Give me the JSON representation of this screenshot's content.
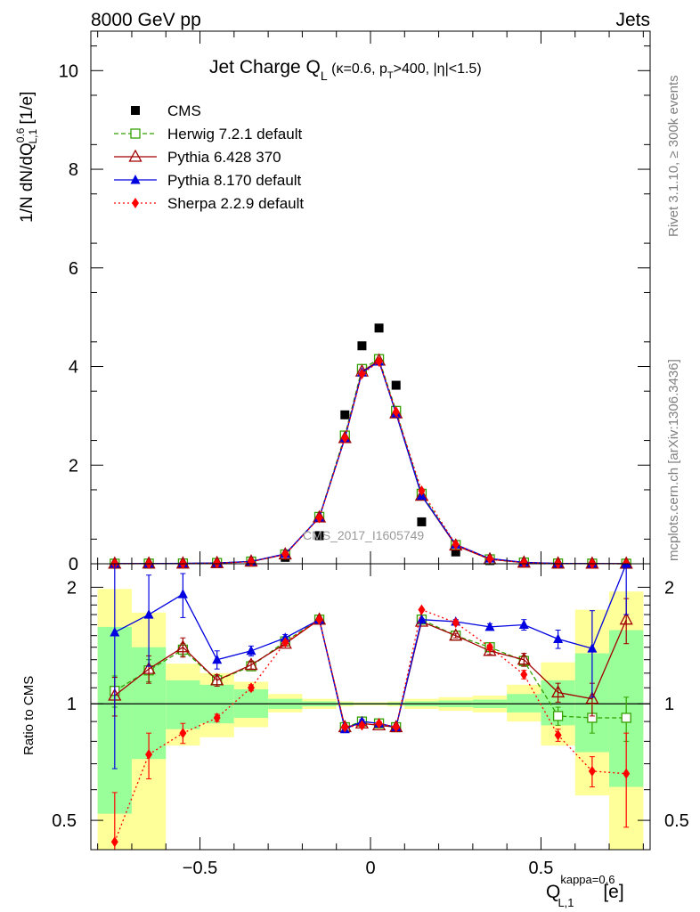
{
  "header": {
    "left": "8000 GeV pp",
    "right": "Jets"
  },
  "side_text": {
    "top": "Rivet 3.1.10, ≥ 300k events",
    "bottom": "mcplots.cern.ch [arXiv:1306.3436]"
  },
  "watermark": "CMS_2017_I1605749",
  "chart_data": [
    {
      "type": "scatter",
      "title": "Jet Charge Q_L (κ=0.6, p_T>400, |η|<1.5)",
      "title_main": "Jet Charge Q",
      "title_sub": "L",
      "title_rest1": " (κ=0.6, p",
      "title_sub2": "T",
      "title_rest2": ">400, |η|<1.5)",
      "ylabel": "1/N dN/dQ_L,1^0.6 [1/e]",
      "ylabel_main": "1/N dN/dQ",
      "ylabel_sup": "0.6",
      "ylabel_sub": "L,1",
      "ylabel_unit": " [1/e]",
      "xlim": [
        -0.82,
        0.82
      ],
      "ylim": [
        0,
        10.8
      ],
      "yticks": [
        0,
        2,
        4,
        6,
        8,
        10
      ],
      "ytick_labels": [
        "0",
        "2",
        "4",
        "6",
        "8",
        "10"
      ],
      "x": [
        -0.75,
        -0.65,
        -0.55,
        -0.45,
        -0.35,
        -0.25,
        -0.15,
        -0.075,
        -0.025,
        0.025,
        0.075,
        0.15,
        0.25,
        0.35,
        0.45,
        0.55,
        0.65,
        0.75
      ],
      "legend_position": "top-left",
      "series": [
        {
          "name": "CMS",
          "color": "#000000",
          "marker": "square",
          "values": [
            0.002,
            0.003,
            0.004,
            0.012,
            0.035,
            0.13,
            0.57,
            3.02,
            4.42,
            4.78,
            3.62,
            0.85,
            0.24,
            0.065,
            0.018,
            0.005,
            0.003,
            0.001
          ]
        },
        {
          "name": "Herwig 7.2.1 default",
          "color": "#33a000",
          "marker": "open-square",
          "dash": "5,3",
          "values": [
            0.002,
            0.004,
            0.006,
            0.016,
            0.045,
            0.19,
            0.95,
            2.6,
            3.95,
            4.15,
            3.1,
            1.42,
            0.38,
            0.09,
            0.025,
            0.005,
            0.003,
            0.001
          ]
        },
        {
          "name": "Pythia 6.428 370",
          "color": "#a00000",
          "marker": "open-triangle",
          "dash": "",
          "values": [
            0.002,
            0.004,
            0.006,
            0.015,
            0.045,
            0.19,
            0.94,
            2.55,
            3.9,
            4.12,
            3.05,
            1.38,
            0.37,
            0.09,
            0.024,
            0.006,
            0.003,
            0.002
          ]
        },
        {
          "name": "Pythia 8.170 default",
          "color": "#0000e0",
          "marker": "triangle",
          "dash": "",
          "values": [
            0.003,
            0.005,
            0.008,
            0.016,
            0.048,
            0.2,
            0.94,
            2.55,
            3.88,
            4.1,
            3.05,
            1.38,
            0.39,
            0.105,
            0.03,
            0.007,
            0.004,
            0.002
          ]
        },
        {
          "name": "Sherpa 2.2.9 default",
          "color": "#ff0000",
          "marker": "diamond",
          "dash": "2,3",
          "values": [
            0.001,
            0.002,
            0.003,
            0.011,
            0.04,
            0.19,
            0.93,
            2.55,
            3.85,
            4.1,
            3.08,
            1.48,
            0.39,
            0.095,
            0.022,
            0.004,
            0.002,
            0.001
          ]
        }
      ]
    },
    {
      "type": "scatter",
      "ylabel": "Ratio to CMS",
      "xlabel": "Q_L,1^kappa=0.6 [e]",
      "xlabel_main": "Q",
      "xlabel_sup": "kappa=0.6",
      "xlabel_sub": "L,1",
      "xlabel_unit": " [e]",
      "xlim": [
        -0.82,
        0.82
      ],
      "ylim": [
        0.42,
        2.3
      ],
      "log_y": true,
      "xticks": [
        -0.5,
        0,
        0.5
      ],
      "xtick_labels": [
        "−0.5",
        "0",
        "0.5"
      ],
      "yticks": [
        0.5,
        1,
        2
      ],
      "ytick_labels": [
        "0.5",
        "1",
        "2"
      ],
      "bins": [
        [
          -0.8,
          -0.7
        ],
        [
          -0.7,
          -0.6
        ],
        [
          -0.6,
          -0.5
        ],
        [
          -0.5,
          -0.4
        ],
        [
          -0.4,
          -0.3
        ],
        [
          -0.3,
          -0.2
        ],
        [
          -0.2,
          -0.1
        ],
        [
          -0.1,
          -0.05
        ],
        [
          -0.05,
          0
        ],
        [
          0,
          0.05
        ],
        [
          0.05,
          0.1
        ],
        [
          0.1,
          0.2
        ],
        [
          0.2,
          0.3
        ],
        [
          0.3,
          0.4
        ],
        [
          0.4,
          0.5
        ],
        [
          0.5,
          0.6
        ],
        [
          0.6,
          0.7
        ],
        [
          0.7,
          0.8
        ]
      ],
      "band_yellow": [
        [
          0.42,
          1.98
        ],
        [
          0.42,
          1.72
        ],
        [
          0.78,
          1.27
        ],
        [
          0.82,
          1.2
        ],
        [
          0.87,
          1.14
        ],
        [
          0.95,
          1.06
        ],
        [
          0.97,
          1.03
        ],
        [
          0.985,
          1.015
        ],
        [
          0.99,
          1.01
        ],
        [
          0.99,
          1.01
        ],
        [
          0.985,
          1.015
        ],
        [
          0.97,
          1.03
        ],
        [
          0.96,
          1.04
        ],
        [
          0.95,
          1.05
        ],
        [
          0.9,
          1.12
        ],
        [
          0.78,
          1.28
        ],
        [
          0.58,
          1.75
        ],
        [
          0.42,
          1.95
        ]
      ],
      "band_green": [
        [
          0.52,
          1.58
        ],
        [
          0.72,
          1.4
        ],
        [
          0.86,
          1.15
        ],
        [
          0.89,
          1.12
        ],
        [
          0.92,
          1.09
        ],
        [
          0.97,
          1.03
        ],
        [
          0.985,
          1.015
        ],
        [
          0.992,
          1.008
        ],
        [
          0.995,
          1.005
        ],
        [
          0.995,
          1.005
        ],
        [
          0.992,
          1.008
        ],
        [
          0.985,
          1.015
        ],
        [
          0.98,
          1.02
        ],
        [
          0.975,
          1.025
        ],
        [
          0.95,
          1.06
        ],
        [
          0.88,
          1.15
        ],
        [
          0.75,
          1.35
        ],
        [
          0.61,
          1.55
        ]
      ],
      "x": [
        -0.75,
        -0.65,
        -0.55,
        -0.45,
        -0.35,
        -0.25,
        -0.15,
        -0.075,
        -0.025,
        0.025,
        0.075,
        0.15,
        0.25,
        0.35,
        0.45,
        0.55,
        0.65,
        0.75
      ],
      "series": [
        {
          "name": "Herwig 7.2.1 default",
          "color": "#33a000",
          "marker": "open-square",
          "dash": "5,3",
          "values": [
            1.08,
            1.22,
            1.38,
            1.15,
            1.25,
            1.45,
            1.65,
            0.87,
            0.9,
            0.89,
            0.87,
            1.65,
            1.5,
            1.4,
            1.29,
            0.93,
            0.92,
            0.92
          ],
          "err": [
            0.1,
            0.08,
            0.05,
            0.03,
            0.03,
            0.02,
            0.01,
            0.01,
            0.01,
            0.01,
            0.01,
            0.01,
            0.02,
            0.03,
            0.04,
            0.05,
            0.08,
            0.12
          ]
        },
        {
          "name": "Pythia 6.428 370",
          "color": "#a00000",
          "marker": "open-triangle",
          "dash": "",
          "values": [
            1.05,
            1.23,
            1.4,
            1.15,
            1.26,
            1.43,
            1.65,
            0.87,
            0.89,
            0.88,
            0.87,
            1.63,
            1.5,
            1.37,
            1.3,
            1.07,
            1.03,
            1.65
          ],
          "err": [
            0.12,
            0.1,
            0.08,
            0.04,
            0.03,
            0.02,
            0.01,
            0.01,
            0.01,
            0.01,
            0.01,
            0.01,
            0.02,
            0.03,
            0.05,
            0.06,
            0.1,
            0.22
          ]
        },
        {
          "name": "Pythia 8.170 default",
          "color": "#0000e0",
          "marker": "triangle",
          "dash": "",
          "values": [
            1.53,
            1.7,
            1.92,
            1.3,
            1.37,
            1.48,
            1.65,
            0.86,
            0.9,
            0.89,
            0.87,
            1.65,
            1.63,
            1.58,
            1.6,
            1.47,
            1.39,
            2.3
          ],
          "err": [
            0.85,
            0.45,
            0.25,
            0.07,
            0.04,
            0.03,
            0.01,
            0.01,
            0.01,
            0.01,
            0.01,
            0.01,
            0.02,
            0.03,
            0.05,
            0.08,
            0.35,
            0.6
          ]
        },
        {
          "name": "Sherpa 2.2.9 default",
          "color": "#ff0000",
          "marker": "diamond",
          "dash": "2,3",
          "values": [
            0.44,
            0.74,
            0.84,
            0.92,
            1.1,
            1.44,
            1.65,
            0.87,
            0.88,
            0.89,
            0.87,
            1.75,
            1.62,
            1.4,
            1.19,
            0.83,
            0.67,
            0.66
          ],
          "err": [
            0.15,
            0.1,
            0.05,
            0.02,
            0.02,
            0.01,
            0.01,
            0.01,
            0.01,
            0.01,
            0.01,
            0.01,
            0.02,
            0.02,
            0.03,
            0.03,
            0.06,
            0.18
          ]
        }
      ]
    }
  ]
}
